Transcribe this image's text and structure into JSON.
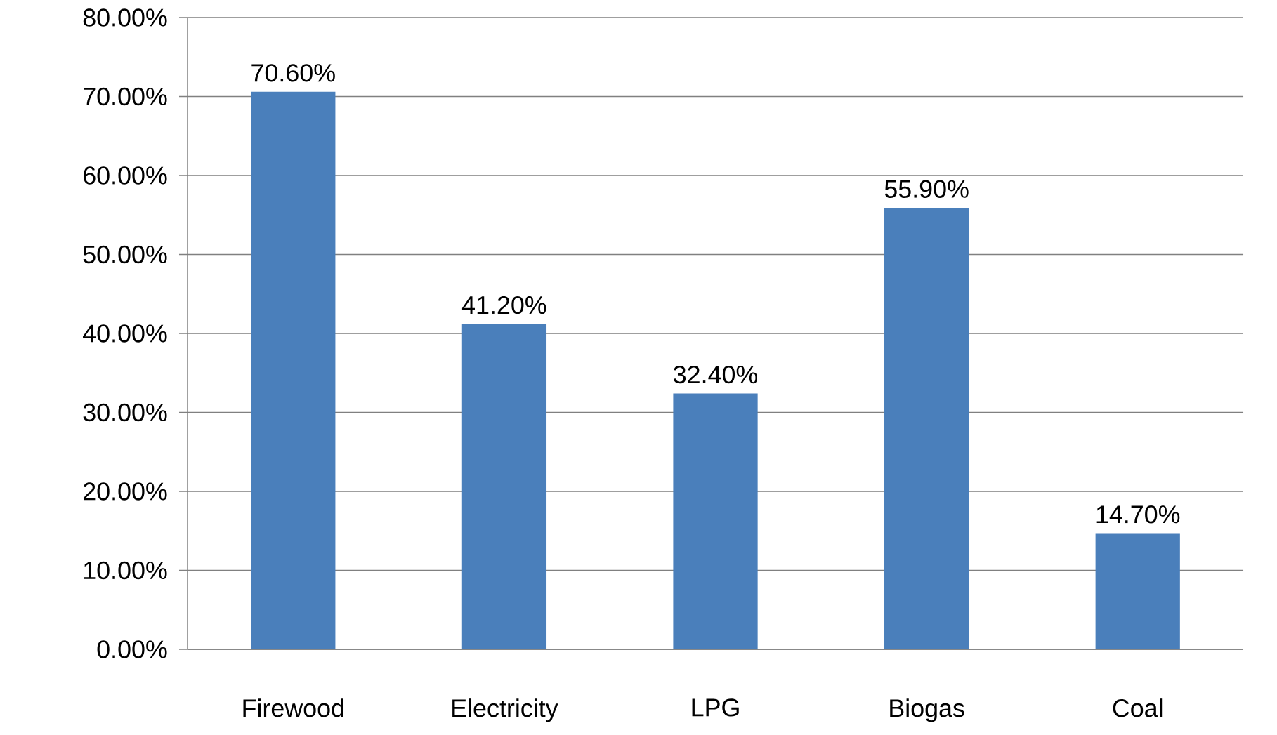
{
  "chart_data": {
    "type": "bar",
    "categories": [
      "Firewood",
      "Electricity",
      "LPG",
      "Biogas",
      "Coal"
    ],
    "values": [
      70.6,
      41.2,
      32.4,
      55.9,
      14.7
    ],
    "value_labels": [
      "70.60%",
      "41.20%",
      "32.40%",
      "55.90%",
      "14.70%"
    ],
    "color": "#4a7fbb",
    "ylim": [
      0,
      80
    ],
    "yticks": [
      {
        "value": 0,
        "label": "0.00%"
      },
      {
        "value": 10,
        "label": "10.00%"
      },
      {
        "value": 20,
        "label": "20.00%"
      },
      {
        "value": 30,
        "label": "30.00%"
      },
      {
        "value": 40,
        "label": "40.00%"
      },
      {
        "value": 50,
        "label": "50.00%"
      },
      {
        "value": 60,
        "label": "60.00%"
      },
      {
        "value": 70,
        "label": "70.00%"
      },
      {
        "value": 80,
        "label": "80.00%"
      }
    ],
    "grid": "y"
  }
}
